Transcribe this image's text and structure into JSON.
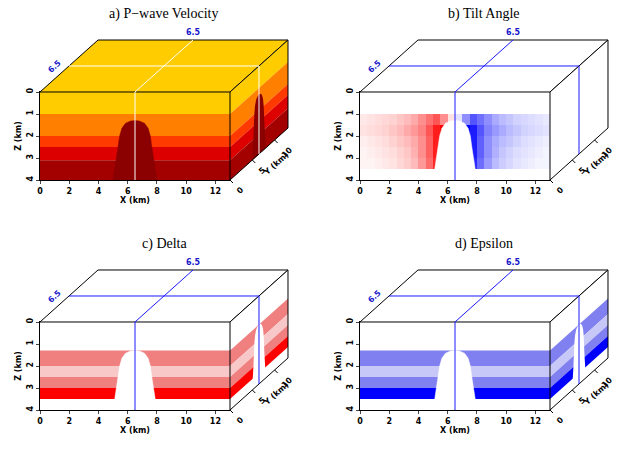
{
  "chart_data": [
    {
      "type": "layers",
      "title": "a) P−wave Velocity",
      "x_label": "X (km)",
      "y_label": "Y (km)",
      "z_label": "Z (km)",
      "xlim": [
        0,
        13
      ],
      "xticks": [
        0,
        2,
        4,
        6,
        8,
        10,
        12
      ],
      "ylim": [
        0,
        13
      ],
      "yticks": [
        0,
        5,
        10
      ],
      "zlim": [
        0,
        4
      ],
      "zticks": [
        0,
        1,
        2,
        3,
        4
      ],
      "slice": {
        "x": 6.5,
        "y": 6.5
      },
      "layers": [
        {
          "top": 0,
          "bottom": 1,
          "color": "#ffcc00"
        },
        {
          "top": 1,
          "bottom": 2,
          "color": "#ff7f00"
        },
        {
          "top": 2,
          "bottom": 2.5,
          "color": "#ff3a00"
        },
        {
          "top": 2.5,
          "bottom": 3.1,
          "color": "#dd0000"
        },
        {
          "top": 3.1,
          "bottom": 4,
          "color": "#a30000"
        }
      ],
      "dome": {
        "color": "#8b0000",
        "x": [
          5.0,
          5.1,
          5.25,
          5.35,
          5.45,
          5.6,
          5.85,
          6.2,
          6.5,
          6.8,
          7.15,
          7.4,
          7.55,
          7.65,
          7.75,
          7.9,
          8.0
        ],
        "z": [
          4.0,
          3.5,
          3.0,
          2.5,
          2.0,
          1.65,
          1.42,
          1.32,
          1.3,
          1.32,
          1.42,
          1.65,
          2.0,
          2.5,
          3.0,
          3.5,
          4.0
        ]
      }
    },
    {
      "type": "heatmap",
      "title": "b) Tilt Angle",
      "x_label": "X (km)",
      "y_label": "Y (km)",
      "z_label": "Z (km)",
      "xlim": [
        0,
        13
      ],
      "xticks": [
        0,
        2,
        4,
        6,
        8,
        10,
        12
      ],
      "ylim": [
        0,
        13
      ],
      "yticks": [
        0,
        5,
        10
      ],
      "zlim": [
        0,
        4
      ],
      "zticks": [
        0,
        1,
        2,
        3,
        4
      ],
      "slice": {
        "x": 6.5,
        "y": 6.5
      },
      "cells": {
        "x": [
          0,
          0.5,
          1,
          1.5,
          2,
          2.5,
          3,
          3.5,
          4,
          4.5,
          5,
          5.5,
          6,
          6.5,
          7,
          7.5,
          8,
          8.5,
          9,
          9.5,
          10,
          10.5,
          11,
          11.5,
          12,
          12.5,
          13
        ],
        "z": [
          1.0,
          1.5,
          2.0,
          2.5,
          3.0,
          3.5
        ],
        "values": [
          [
            4,
            5,
            6,
            7,
            8,
            10,
            12,
            15,
            20,
            25,
            30,
            20,
            5,
            -5,
            -20,
            -30,
            -25,
            -20,
            -15,
            -12,
            -10,
            -8,
            -7,
            -6,
            -5,
            -4
          ],
          [
            5,
            6,
            7,
            8,
            10,
            12,
            15,
            18,
            22,
            30,
            40,
            45,
            45,
            -45,
            -45,
            -40,
            -30,
            -22,
            -18,
            -15,
            -12,
            -10,
            -8,
            -7,
            -6,
            -5
          ],
          [
            3,
            4,
            5,
            6,
            8,
            10,
            12,
            15,
            20,
            28,
            40,
            45,
            45,
            -45,
            -45,
            -40,
            -28,
            -20,
            -15,
            -12,
            -10,
            -8,
            -6,
            -5,
            -4,
            -3
          ],
          [
            2,
            3,
            4,
            5,
            6,
            8,
            10,
            14,
            20,
            28,
            40,
            45,
            45,
            -45,
            -45,
            -40,
            -28,
            -20,
            -14,
            -10,
            -8,
            -6,
            -5,
            -4,
            -3,
            -2
          ],
          [
            2,
            2,
            3,
            4,
            5,
            7,
            9,
            12,
            18,
            26,
            38,
            45,
            45,
            -45,
            -45,
            -38,
            -26,
            -18,
            -12,
            -9,
            -7,
            -5,
            -4,
            -3,
            -2,
            -2
          ]
        ],
        "range": [
          -45,
          45
        ]
      },
      "dome": {
        "color": "#ffffff",
        "x": [
          5.0,
          5.1,
          5.25,
          5.35,
          5.45,
          5.6,
          5.85,
          6.2,
          6.5,
          6.8,
          7.15,
          7.4,
          7.55,
          7.65,
          7.75,
          7.9,
          8.0
        ],
        "z": [
          4.0,
          3.5,
          3.0,
          2.5,
          2.0,
          1.65,
          1.42,
          1.32,
          1.3,
          1.32,
          1.42,
          1.65,
          2.0,
          2.5,
          3.0,
          3.5,
          4.0
        ]
      }
    },
    {
      "type": "layers",
      "title": "c) Delta",
      "x_label": "X (km)",
      "y_label": "Y (km)",
      "z_label": "Z (km)",
      "xlim": [
        0,
        13
      ],
      "xticks": [
        0,
        2,
        4,
        6,
        8,
        10,
        12
      ],
      "ylim": [
        0,
        13
      ],
      "yticks": [
        0,
        5,
        10
      ],
      "zlim": [
        0,
        4
      ],
      "zticks": [
        0,
        1,
        2,
        3,
        4
      ],
      "slice": {
        "x": 6.5,
        "y": 6.5
      },
      "layers": [
        {
          "top": 1.3,
          "bottom": 2.0,
          "color": "#f08080"
        },
        {
          "top": 2.0,
          "bottom": 2.5,
          "color": "#f8c8c8"
        },
        {
          "top": 2.5,
          "bottom": 3.0,
          "color": "#f08080"
        },
        {
          "top": 3.0,
          "bottom": 3.5,
          "color": "#ff0000"
        }
      ],
      "dome": {
        "color": "#ffffff",
        "x": [
          5.0,
          5.1,
          5.25,
          5.35,
          5.45,
          5.6,
          5.85,
          6.2,
          6.5,
          6.8,
          7.15,
          7.4,
          7.55,
          7.65,
          7.75,
          7.9,
          8.0
        ],
        "z": [
          4.0,
          3.5,
          3.0,
          2.5,
          2.0,
          1.65,
          1.42,
          1.32,
          1.3,
          1.32,
          1.42,
          1.65,
          2.0,
          2.5,
          3.0,
          3.5,
          4.0
        ]
      }
    },
    {
      "type": "layers",
      "title": "d) Epsilon",
      "x_label": "X (km)",
      "y_label": "Y (km)",
      "z_label": "Z (km)",
      "xlim": [
        0,
        13
      ],
      "xticks": [
        0,
        2,
        4,
        6,
        8,
        10,
        12
      ],
      "ylim": [
        0,
        13
      ],
      "yticks": [
        0,
        5,
        10
      ],
      "zlim": [
        0,
        4
      ],
      "zticks": [
        0,
        1,
        2,
        3,
        4
      ],
      "slice": {
        "x": 6.5,
        "y": 6.5
      },
      "layers": [
        {
          "top": 1.3,
          "bottom": 2.0,
          "color": "#8080f0"
        },
        {
          "top": 2.0,
          "bottom": 2.5,
          "color": "#c8c8f8"
        },
        {
          "top": 2.5,
          "bottom": 3.0,
          "color": "#8080f0"
        },
        {
          "top": 3.0,
          "bottom": 3.5,
          "color": "#0000ff"
        }
      ],
      "dome": {
        "color": "#ffffff",
        "x": [
          5.0,
          5.1,
          5.25,
          5.35,
          5.45,
          5.6,
          5.85,
          6.2,
          6.5,
          6.8,
          7.15,
          7.4,
          7.55,
          7.65,
          7.75,
          7.9,
          8.0
        ],
        "z": [
          4.0,
          3.5,
          3.0,
          2.5,
          2.0,
          1.65,
          1.42,
          1.32,
          1.3,
          1.32,
          1.42,
          1.65,
          2.0,
          2.5,
          3.0,
          3.5,
          4.0
        ]
      }
    }
  ]
}
